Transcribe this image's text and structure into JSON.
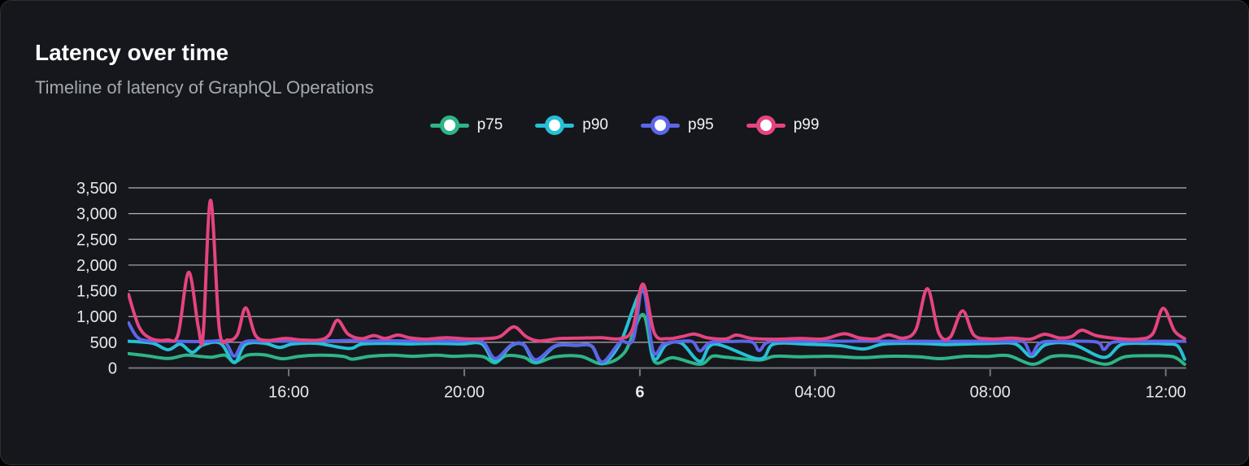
{
  "card": {
    "title": "Latency over time",
    "subtitle": "Timeline of latency of GraphQL Operations",
    "background": "#15171c",
    "border_color": "#2c2f35"
  },
  "ui_colors": {
    "title_text": "#ffffff",
    "subtitle_text": "#a3a9b0",
    "axis_label_text": "#e6e8eb",
    "axis_line": "#71767e",
    "grid_line": "#d5d8dd",
    "legend_text": "#f2f3f5"
  },
  "chart_data": {
    "type": "line",
    "title": "Latency over time",
    "subtitle": "Timeline of latency of GraphQL Operations",
    "grid": true,
    "legend_position": "top-center",
    "ylim": [
      0,
      3500
    ],
    "ytick_step": 500,
    "ytick_labels": [
      "0",
      "500",
      "1,000",
      "1,500",
      "2,000",
      "2,500",
      "3,000",
      "3,500"
    ],
    "x_hours_range": [
      0,
      24.1
    ],
    "xticks": [
      {
        "h": 3.65,
        "label": "16:00",
        "bold": false
      },
      {
        "h": 7.65,
        "label": "20:00",
        "bold": false
      },
      {
        "h": 11.65,
        "label": "6",
        "bold": true
      },
      {
        "h": 15.64,
        "label": "04:00",
        "bold": false
      },
      {
        "h": 19.63,
        "label": "08:00",
        "bold": false
      },
      {
        "h": 23.63,
        "label": "12:00",
        "bold": false
      }
    ],
    "series": [
      {
        "name": "p75",
        "color": "#2eb487",
        "points": [
          [
            0,
            280
          ],
          [
            0.4,
            240
          ],
          [
            0.9,
            185
          ],
          [
            1.3,
            250
          ],
          [
            1.6,
            228
          ],
          [
            1.9,
            210
          ],
          [
            2.2,
            248
          ],
          [
            2.41,
            115
          ],
          [
            2.7,
            248
          ],
          [
            3.1,
            255
          ],
          [
            3.5,
            180
          ],
          [
            3.9,
            228
          ],
          [
            4.4,
            250
          ],
          [
            4.9,
            225
          ],
          [
            5.1,
            172
          ],
          [
            5.5,
            228
          ],
          [
            6.0,
            248
          ],
          [
            6.5,
            228
          ],
          [
            7.0,
            248
          ],
          [
            7.4,
            228
          ],
          [
            7.8,
            238
          ],
          [
            8.1,
            215
          ],
          [
            8.35,
            100
          ],
          [
            8.6,
            238
          ],
          [
            9.0,
            210
          ],
          [
            9.28,
            100
          ],
          [
            9.72,
            218
          ],
          [
            10.3,
            228
          ],
          [
            10.8,
            82
          ],
          [
            11.3,
            300
          ],
          [
            11.72,
            1040
          ],
          [
            11.98,
            125
          ],
          [
            12.4,
            200
          ],
          [
            13.02,
            72
          ],
          [
            13.3,
            228
          ],
          [
            13.62,
            208
          ],
          [
            14.37,
            155
          ],
          [
            14.72,
            228
          ],
          [
            15.3,
            218
          ],
          [
            16.0,
            228
          ],
          [
            16.7,
            200
          ],
          [
            17.3,
            228
          ],
          [
            18.0,
            218
          ],
          [
            18.5,
            182
          ],
          [
            19.05,
            228
          ],
          [
            19.55,
            225
          ],
          [
            20.05,
            238
          ],
          [
            20.6,
            72
          ],
          [
            21.05,
            228
          ],
          [
            21.6,
            218
          ],
          [
            22.25,
            72
          ],
          [
            22.7,
            218
          ],
          [
            23.3,
            238
          ],
          [
            23.8,
            218
          ],
          [
            24.06,
            72
          ]
        ]
      },
      {
        "name": "p90",
        "color": "#25c0d6",
        "points": [
          [
            0,
            520
          ],
          [
            0.55,
            480
          ],
          [
            0.9,
            355
          ],
          [
            1.18,
            465
          ],
          [
            1.45,
            305
          ],
          [
            1.7,
            450
          ],
          [
            2.1,
            478
          ],
          [
            2.41,
            105
          ],
          [
            2.66,
            455
          ],
          [
            3.1,
            480
          ],
          [
            3.44,
            400
          ],
          [
            3.75,
            468
          ],
          [
            4.3,
            478
          ],
          [
            5.02,
            380
          ],
          [
            5.32,
            465
          ],
          [
            5.9,
            478
          ],
          [
            6.4,
            468
          ],
          [
            7.0,
            478
          ],
          [
            7.6,
            468
          ],
          [
            8.05,
            470
          ],
          [
            8.35,
            125
          ],
          [
            8.72,
            430
          ],
          [
            9.0,
            450
          ],
          [
            9.28,
            120
          ],
          [
            9.72,
            420
          ],
          [
            10.2,
            440
          ],
          [
            10.55,
            425
          ],
          [
            10.8,
            95
          ],
          [
            11.2,
            480
          ],
          [
            11.72,
            1500
          ],
          [
            11.95,
            210
          ],
          [
            12.25,
            455
          ],
          [
            12.6,
            480
          ],
          [
            13.02,
            130
          ],
          [
            13.35,
            465
          ],
          [
            14.37,
            175
          ],
          [
            14.7,
            465
          ],
          [
            15.5,
            460
          ],
          [
            16.2,
            435
          ],
          [
            16.75,
            370
          ],
          [
            17.2,
            465
          ],
          [
            18.0,
            478
          ],
          [
            18.6,
            455
          ],
          [
            19.05,
            465
          ],
          [
            19.63,
            478
          ],
          [
            20.2,
            468
          ],
          [
            20.57,
            225
          ],
          [
            20.9,
            455
          ],
          [
            21.5,
            468
          ],
          [
            22.22,
            205
          ],
          [
            22.62,
            455
          ],
          [
            23.2,
            478
          ],
          [
            23.63,
            468
          ],
          [
            23.9,
            430
          ],
          [
            24.06,
            170
          ]
        ]
      },
      {
        "name": "p95",
        "color": "#5d65e8",
        "points": [
          [
            0,
            880
          ],
          [
            0.2,
            600
          ],
          [
            0.45,
            528
          ],
          [
            1.0,
            522
          ],
          [
            1.37,
            515
          ],
          [
            1.7,
            515
          ],
          [
            1.87,
            520
          ],
          [
            2.2,
            505
          ],
          [
            2.41,
            230
          ],
          [
            2.62,
            495
          ],
          [
            3.0,
            525
          ],
          [
            3.44,
            520
          ],
          [
            4.0,
            525
          ],
          [
            4.76,
            530
          ],
          [
            5.02,
            535
          ],
          [
            5.5,
            525
          ],
          [
            6.0,
            530
          ],
          [
            6.5,
            522
          ],
          [
            7.0,
            525
          ],
          [
            7.5,
            520
          ],
          [
            8.05,
            515
          ],
          [
            8.35,
            185
          ],
          [
            8.72,
            445
          ],
          [
            9.0,
            460
          ],
          [
            9.28,
            160
          ],
          [
            9.72,
            430
          ],
          [
            10.2,
            445
          ],
          [
            10.55,
            430
          ],
          [
            10.8,
            115
          ],
          [
            11.2,
            500
          ],
          [
            11.5,
            560
          ],
          [
            11.72,
            1580
          ],
          [
            11.95,
            330
          ],
          [
            12.2,
            470
          ],
          [
            12.6,
            520
          ],
          [
            12.86,
            505
          ],
          [
            13.02,
            330
          ],
          [
            13.25,
            495
          ],
          [
            13.7,
            515
          ],
          [
            14.2,
            505
          ],
          [
            14.37,
            340
          ],
          [
            14.58,
            505
          ],
          [
            15.2,
            520
          ],
          [
            16.0,
            520
          ],
          [
            17.0,
            522
          ],
          [
            18.0,
            520
          ],
          [
            18.7,
            518
          ],
          [
            19.3,
            520
          ],
          [
            20.1,
            518
          ],
          [
            20.4,
            505
          ],
          [
            20.57,
            265
          ],
          [
            20.78,
            490
          ],
          [
            21.3,
            518
          ],
          [
            22.05,
            505
          ],
          [
            22.22,
            360
          ],
          [
            22.42,
            500
          ],
          [
            23.0,
            518
          ],
          [
            23.63,
            520
          ],
          [
            24.06,
            520
          ]
        ]
      },
      {
        "name": "p99",
        "color": "#e5447f",
        "points": [
          [
            0,
            1430
          ],
          [
            0.24,
            800
          ],
          [
            0.52,
            570
          ],
          [
            0.89,
            545
          ],
          [
            1.13,
            650
          ],
          [
            1.37,
            1860
          ],
          [
            1.59,
            800
          ],
          [
            1.7,
            640
          ],
          [
            1.87,
            3260
          ],
          [
            2.07,
            760
          ],
          [
            2.26,
            545
          ],
          [
            2.48,
            650
          ],
          [
            2.67,
            1170
          ],
          [
            2.89,
            640
          ],
          [
            3.15,
            535
          ],
          [
            3.57,
            575
          ],
          [
            3.94,
            545
          ],
          [
            4.35,
            545
          ],
          [
            4.57,
            640
          ],
          [
            4.76,
            930
          ],
          [
            5.0,
            660
          ],
          [
            5.3,
            570
          ],
          [
            5.59,
            630
          ],
          [
            5.85,
            575
          ],
          [
            6.13,
            640
          ],
          [
            6.39,
            590
          ],
          [
            6.76,
            560
          ],
          [
            7.24,
            590
          ],
          [
            7.69,
            565
          ],
          [
            8.13,
            570
          ],
          [
            8.46,
            610
          ],
          [
            8.78,
            800
          ],
          [
            9.06,
            610
          ],
          [
            9.35,
            525
          ],
          [
            9.8,
            570
          ],
          [
            10.28,
            580
          ],
          [
            10.76,
            590
          ],
          [
            11.2,
            570
          ],
          [
            11.48,
            750
          ],
          [
            11.72,
            1630
          ],
          [
            11.98,
            680
          ],
          [
            12.28,
            570
          ],
          [
            12.61,
            610
          ],
          [
            12.89,
            660
          ],
          [
            13.2,
            585
          ],
          [
            13.61,
            565
          ],
          [
            13.85,
            640
          ],
          [
            14.2,
            575
          ],
          [
            14.74,
            560
          ],
          [
            15.31,
            575
          ],
          [
            15.83,
            565
          ],
          [
            16.3,
            665
          ],
          [
            16.65,
            585
          ],
          [
            17.02,
            565
          ],
          [
            17.31,
            645
          ],
          [
            17.65,
            580
          ],
          [
            17.94,
            750
          ],
          [
            18.2,
            1540
          ],
          [
            18.46,
            680
          ],
          [
            18.72,
            600
          ],
          [
            19.0,
            1110
          ],
          [
            19.26,
            640
          ],
          [
            19.63,
            565
          ],
          [
            20.13,
            580
          ],
          [
            20.54,
            560
          ],
          [
            20.87,
            655
          ],
          [
            21.2,
            585
          ],
          [
            21.48,
            610
          ],
          [
            21.72,
            735
          ],
          [
            22.04,
            630
          ],
          [
            22.5,
            575
          ],
          [
            22.98,
            560
          ],
          [
            23.33,
            660
          ],
          [
            23.57,
            1160
          ],
          [
            23.83,
            720
          ],
          [
            24.06,
            570
          ]
        ]
      }
    ]
  }
}
